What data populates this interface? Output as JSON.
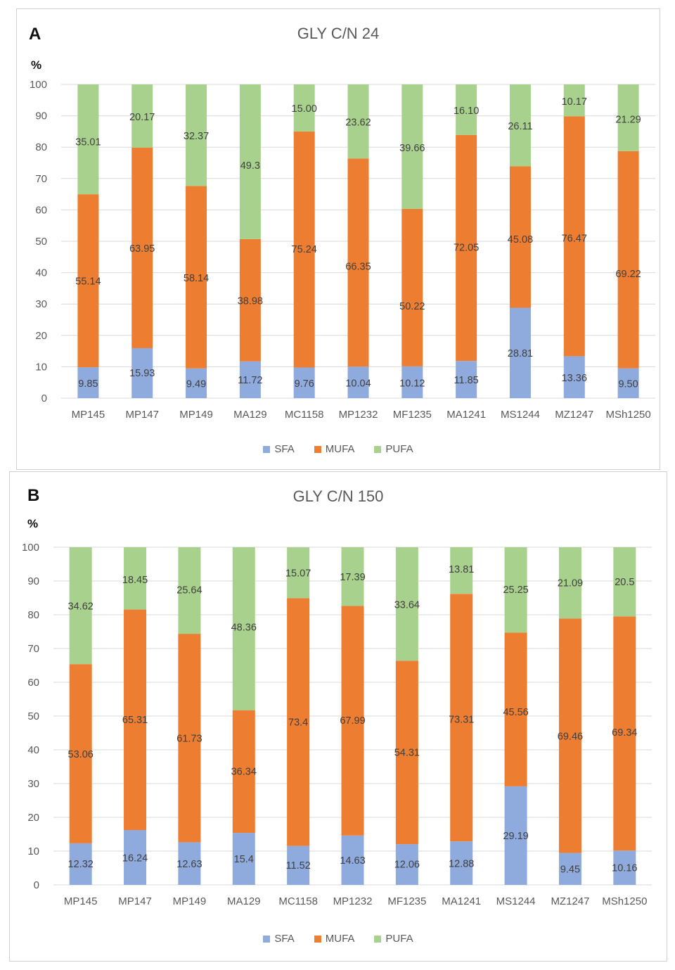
{
  "colors": {
    "SFA": "#8FAADC",
    "MUFA": "#ED7D31",
    "PUFA": "#A9D18E"
  },
  "legend": [
    "SFA",
    "MUFA",
    "PUFA"
  ],
  "chart_data": [
    {
      "type": "bar",
      "stacked": true,
      "panel": "A",
      "title": "GLY C/N 24",
      "ylabel": "%",
      "ylim": [
        0,
        100
      ],
      "yticks": [
        0,
        10,
        20,
        30,
        40,
        50,
        60,
        70,
        80,
        90,
        100
      ],
      "categories": [
        "MP145",
        "MP147",
        "MP149",
        "MA129",
        "MC1158",
        "MP1232",
        "MF1235",
        "MA1241",
        "MS1244",
        "MZ1247",
        "MSh1250"
      ],
      "series": [
        {
          "name": "SFA",
          "values": [
            9.85,
            15.93,
            9.49,
            11.72,
            9.76,
            10.04,
            10.12,
            11.85,
            28.81,
            13.36,
            9.5
          ],
          "labels": [
            "9.85",
            "15.93",
            "9.49",
            "11.72",
            "9.76",
            "10.04",
            "10.12",
            "11.85",
            "28.81",
            "13.36",
            "9.50"
          ]
        },
        {
          "name": "MUFA",
          "values": [
            55.14,
            63.95,
            58.14,
            38.98,
            75.24,
            66.35,
            50.22,
            72.05,
            45.08,
            76.47,
            69.22
          ],
          "labels": [
            "55.14",
            "63.95",
            "58.14",
            "38.98",
            "75.24",
            "66.35",
            "50.22",
            "72.05",
            "45.08",
            "76.47",
            "69.22"
          ]
        },
        {
          "name": "PUFA",
          "values": [
            35.01,
            20.17,
            32.37,
            49.3,
            15.0,
            23.62,
            39.66,
            16.1,
            26.11,
            10.17,
            21.29
          ],
          "labels": [
            "35.01",
            "20.17",
            "32.37",
            "49.3",
            "15.00",
            "23.62",
            "39.66",
            "16.10",
            "26.11",
            "10.17",
            "21.29"
          ]
        }
      ]
    },
    {
      "type": "bar",
      "stacked": true,
      "panel": "B",
      "title": "GLY C/N 150",
      "ylabel": "%",
      "ylim": [
        0,
        100
      ],
      "yticks": [
        0,
        10,
        20,
        30,
        40,
        50,
        60,
        70,
        80,
        90,
        100
      ],
      "categories": [
        "MP145",
        "MP147",
        "MP149",
        "MA129",
        "MC1158",
        "MP1232",
        "MF1235",
        "MA1241",
        "MS1244",
        "MZ1247",
        "MSh1250"
      ],
      "series": [
        {
          "name": "SFA",
          "values": [
            12.32,
            16.24,
            12.63,
            15.4,
            11.52,
            14.63,
            12.06,
            12.88,
            29.19,
            9.45,
            10.16
          ],
          "labels": [
            "12.32",
            "16.24",
            "12.63",
            "15.4",
            "11.52",
            "14.63",
            "12.06",
            "12.88",
            "29.19",
            "9.45",
            "10.16"
          ]
        },
        {
          "name": "MUFA",
          "values": [
            53.06,
            65.31,
            61.73,
            36.34,
            73.4,
            67.99,
            54.31,
            73.31,
            45.56,
            69.46,
            69.34
          ],
          "labels": [
            "53.06",
            "65.31",
            "61.73",
            "36.34",
            "73.4",
            "67.99",
            "54.31",
            "73.31",
            "45.56",
            "69.46",
            "69.34"
          ]
        },
        {
          "name": "PUFA",
          "values": [
            34.62,
            18.45,
            25.64,
            48.36,
            15.07,
            17.39,
            33.64,
            13.81,
            25.25,
            21.09,
            20.5
          ],
          "labels": [
            "34.62",
            "18.45",
            "25.64",
            "48.36",
            "15.07",
            "17.39",
            "33.64",
            "13.81",
            "25.25",
            "21.09",
            "20.5"
          ]
        }
      ]
    }
  ]
}
